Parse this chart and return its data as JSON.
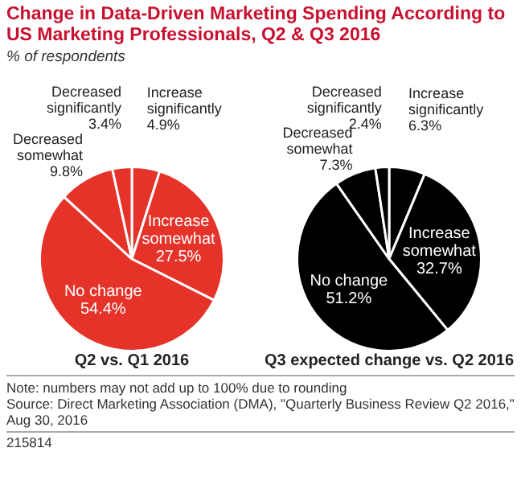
{
  "chart_data": [
    {
      "type": "pie",
      "title": "Change in Data-Driven Marketing Spending According to US Marketing Professionals, Q2 & Q3 2016",
      "subtitle": "% of respondents",
      "xlabel": "Q2 vs. Q1 2016",
      "categories": [
        "Increase significantly",
        "Increase somewhat",
        "No change",
        "Decreased somewhat",
        "Decreased significantly"
      ],
      "values": [
        4.9,
        27.5,
        54.4,
        9.8,
        3.4
      ],
      "value_labels": [
        "4.9%",
        "27.5%",
        "54.4%",
        "9.8%",
        "3.4%"
      ],
      "colors": [
        "#e5332a",
        "#e5332a",
        "#e5332a",
        "#e5332a",
        "#e5332a"
      ]
    },
    {
      "type": "pie",
      "xlabel": "Q3 expected change vs. Q2 2016",
      "categories": [
        "Increase significantly",
        "Increase somewhat",
        "No change",
        "Decreased somewhat",
        "Decreased significantly"
      ],
      "values": [
        6.3,
        32.7,
        51.2,
        7.3,
        2.4
      ],
      "value_labels": [
        "6.3%",
        "32.7%",
        "51.2%",
        "7.3%",
        "2.4%"
      ],
      "colors": [
        "#000000",
        "#000000",
        "#000000",
        "#000000",
        "#000000"
      ],
      "annotations": [
        "Note: numbers may not add up to 100% due to rounding",
        "Source: Direct Marketing Association (DMA), \"Quarterly Business Review Q2 2016,\" Aug 30, 2016",
        "215814"
      ]
    }
  ]
}
